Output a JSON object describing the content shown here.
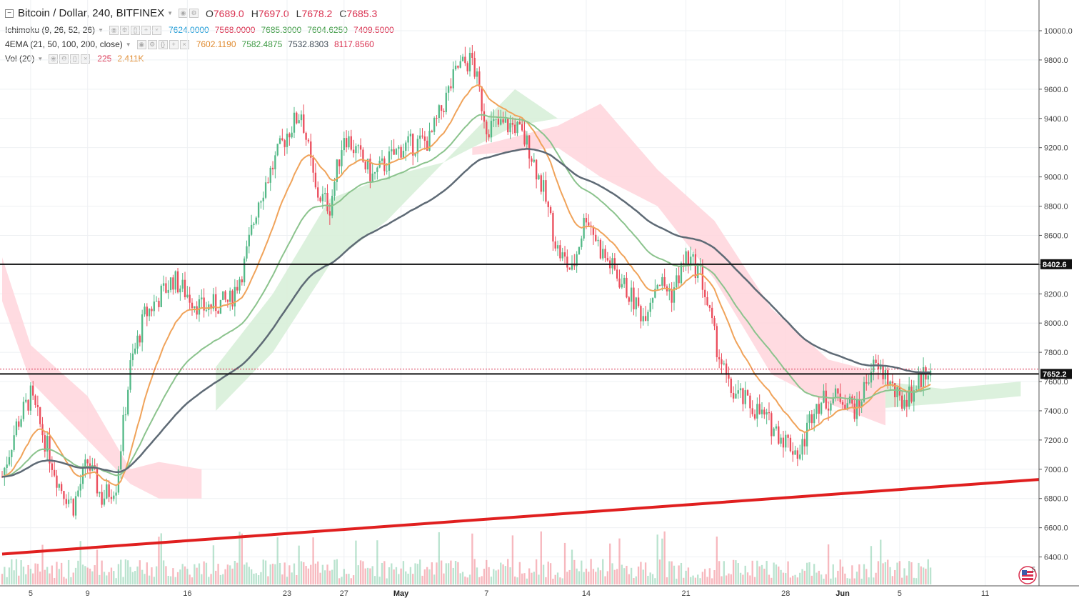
{
  "header": {
    "symbol": "Bitcoin / Dollar, 240, BITFINEX",
    "open_label": "O",
    "open": "7689.0",
    "high_label": "H",
    "high": "7697.0",
    "low_label": "L",
    "low": "7678.2",
    "close_label": "C",
    "close": "7685.3"
  },
  "indicators": {
    "ichimoku": {
      "name": "Ichimoku (9, 26, 52, 26)",
      "values": [
        "7624.0000",
        "7568.0000",
        "7685.3000",
        "7604.6250",
        "7409.5000"
      ],
      "colors": [
        "#1f9bd6",
        "#d9304f",
        "#3f9b45",
        "#3f9b45",
        "#d9304f"
      ]
    },
    "ema": {
      "name": "4EMA (21, 50, 100, 200, close)",
      "values": [
        "7602.1190",
        "7582.4875",
        "7532.8303",
        "8117.8560"
      ],
      "colors": [
        "#e08a2e",
        "#3f9b45",
        "#3d4a55",
        "#d9304f"
      ]
    },
    "volume": {
      "name": "Vol (20)",
      "values": [
        "225",
        "2.411K"
      ],
      "colors": [
        "#d9304f",
        "#e08a2e"
      ]
    }
  },
  "price_axis": {
    "labels": [
      "10000.0",
      "9800.0",
      "9600.0",
      "9400.0",
      "9200.0",
      "9000.0",
      "8800.0",
      "8600.0",
      "8400.0",
      "8200.0",
      "8000.0",
      "7800.0",
      "7600.0",
      "7400.0",
      "7200.0",
      "7000.0",
      "6800.0",
      "6600.0",
      "6400.0"
    ],
    "hline_labels": [
      "8402.6",
      "7652.2"
    ]
  },
  "time_axis": {
    "labels": [
      "5",
      "9",
      "16",
      "23",
      "27",
      "May",
      "7",
      "14",
      "21",
      "28",
      "Jun",
      "5",
      "11"
    ]
  },
  "chart_data": {
    "type": "line",
    "series_kind": "candlestick price series (approximate closes, 4h, selected points)",
    "x": [
      "Apr 3",
      "Apr 4",
      "Apr 5",
      "Apr 7",
      "Apr 8",
      "Apr 9",
      "Apr 10",
      "Apr 11",
      "Apr 12",
      "Apr 13",
      "Apr 15",
      "Apr 17",
      "Apr 19",
      "Apr 20",
      "Apr 21",
      "Apr 23",
      "Apr 24",
      "Apr 25",
      "Apr 26",
      "Apr 27",
      "Apr 29",
      "May 1",
      "May 3",
      "May 5",
      "May 6",
      "May 7",
      "May 9",
      "May 10",
      "May 11",
      "May 12",
      "May 13",
      "May 14",
      "May 15",
      "May 17",
      "May 18",
      "May 19",
      "May 20",
      "May 21",
      "May 22",
      "May 23",
      "May 24",
      "May 26",
      "May 27",
      "May 28",
      "May 29",
      "May 30",
      "Jun 1",
      "Jun 2",
      "Jun 3",
      "Jun 4",
      "Jun 5",
      "Jun 6",
      "Jun 7"
    ],
    "series": [
      {
        "values": [
          6950,
          7300,
          7500,
          6900,
          6750,
          7050,
          6800,
          6900,
          7700,
          8050,
          8300,
          8100,
          8150,
          8400,
          8850,
          9300,
          9450,
          8900,
          8800,
          9300,
          9000,
          9200,
          9250,
          9750,
          9800,
          9350,
          9350,
          9200,
          8900,
          8500,
          8350,
          8750,
          8500,
          8200,
          8050,
          8300,
          8200,
          8450,
          8350,
          7900,
          7550,
          7400,
          7300,
          7200,
          7100,
          7450,
          7500,
          7400,
          7700,
          7650,
          7450,
          7550,
          7700
        ]
      }
    ],
    "ylim": [
      6300,
      10050
    ],
    "horizontal_lines": [
      8402.6,
      7652.2
    ],
    "trendline": {
      "start": [
        "Apr 3",
        6420
      ],
      "end": [
        "Jun 12",
        6930
      ]
    },
    "colors": {
      "up": "#53b987",
      "down": "#eb4d5c",
      "ema21": "#f0a35a",
      "ema50": "#8bc38d",
      "ema100": "#5e6a75",
      "trend": "#e01f1f",
      "cloud_bull": "#d8efd9",
      "cloud_bear": "#ffd5dc"
    },
    "grid": true
  }
}
